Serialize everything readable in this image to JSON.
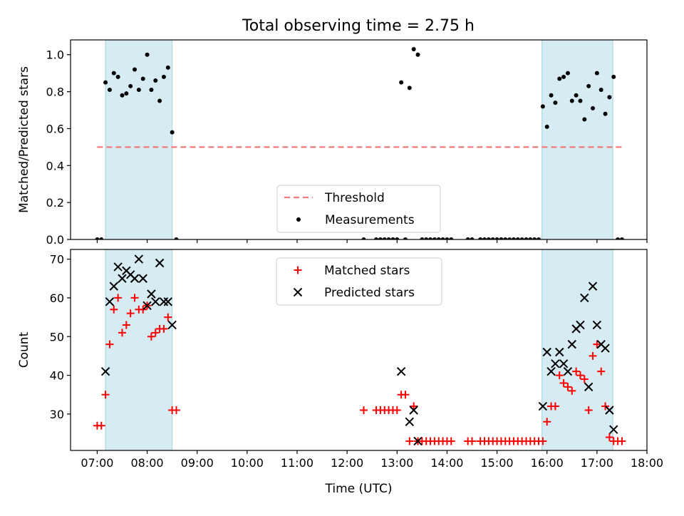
{
  "title": "Total observing time = 2.75 h",
  "chart_data": [
    {
      "type": "scatter",
      "ylabel": "Matched/Predicted stars",
      "xlim": [
        "06:28",
        "18:00"
      ],
      "ylim": [
        0,
        1.08
      ],
      "yticks": [
        "0.0",
        "0.2",
        "0.4",
        "0.6",
        "0.8",
        "1.0"
      ],
      "yticks_values": [
        0,
        0.2,
        0.4,
        0.6,
        0.8,
        1.0
      ],
      "shaded_intervals": [
        [
          "07:10",
          "08:30"
        ],
        [
          "15:54",
          "17:19"
        ]
      ],
      "threshold": {
        "name": "Threshold",
        "y": 0.5,
        "x_range": [
          "07:00",
          "17:30"
        ],
        "color": "#f47a7a"
      },
      "legend": {
        "position": "lower center",
        "entries": [
          "Threshold",
          "Measurements"
        ]
      },
      "series": [
        {
          "name": "Measurements",
          "marker": "dot",
          "color": "#000000",
          "points": [
            [
              "07:00",
              0
            ],
            [
              "07:05",
              0
            ],
            [
              "07:10",
              0.85
            ],
            [
              "07:15",
              0.81
            ],
            [
              "07:20",
              0.9
            ],
            [
              "07:25",
              0.88
            ],
            [
              "07:30",
              0.78
            ],
            [
              "07:35",
              0.79
            ],
            [
              "07:40",
              0.83
            ],
            [
              "07:45",
              0.92
            ],
            [
              "07:50",
              0.81
            ],
            [
              "07:55",
              0.87
            ],
            [
              "08:00",
              1.0
            ],
            [
              "08:05",
              0.81
            ],
            [
              "08:10",
              0.86
            ],
            [
              "08:15",
              0.75
            ],
            [
              "08:20",
              0.88
            ],
            [
              "08:25",
              0.93
            ],
            [
              "08:30",
              0.58
            ],
            [
              "08:35",
              0
            ],
            [
              "12:20",
              0
            ],
            [
              "12:35",
              0
            ],
            [
              "12:40",
              0
            ],
            [
              "12:45",
              0
            ],
            [
              "12:50",
              0
            ],
            [
              "12:55",
              0
            ],
            [
              "13:00",
              0
            ],
            [
              "13:05",
              0.85
            ],
            [
              "13:10",
              0
            ],
            [
              "13:15",
              0.82
            ],
            [
              "13:20",
              1.03
            ],
            [
              "13:25",
              1.0
            ],
            [
              "13:30",
              0
            ],
            [
              "13:35",
              0
            ],
            [
              "13:40",
              0
            ],
            [
              "13:45",
              0
            ],
            [
              "13:50",
              0
            ],
            [
              "13:55",
              0
            ],
            [
              "14:00",
              0
            ],
            [
              "14:05",
              0
            ],
            [
              "14:25",
              0
            ],
            [
              "14:30",
              0
            ],
            [
              "14:40",
              0
            ],
            [
              "14:45",
              0
            ],
            [
              "14:50",
              0
            ],
            [
              "14:55",
              0
            ],
            [
              "15:00",
              0
            ],
            [
              "15:05",
              0
            ],
            [
              "15:10",
              0
            ],
            [
              "15:15",
              0
            ],
            [
              "15:20",
              0
            ],
            [
              "15:25",
              0
            ],
            [
              "15:30",
              0
            ],
            [
              "15:35",
              0
            ],
            [
              "15:40",
              0
            ],
            [
              "15:45",
              0
            ],
            [
              "15:50",
              0
            ],
            [
              "15:55",
              0.72
            ],
            [
              "16:00",
              0.61
            ],
            [
              "16:05",
              0.78
            ],
            [
              "16:10",
              0.74
            ],
            [
              "16:15",
              0.87
            ],
            [
              "16:20",
              0.88
            ],
            [
              "16:25",
              0.9
            ],
            [
              "16:30",
              0.75
            ],
            [
              "16:35",
              0.78
            ],
            [
              "16:40",
              0.75
            ],
            [
              "16:45",
              0.65
            ],
            [
              "16:50",
              0.83
            ],
            [
              "16:55",
              0.71
            ],
            [
              "17:00",
              0.9
            ],
            [
              "17:05",
              0.81
            ],
            [
              "17:10",
              0.68
            ],
            [
              "17:15",
              0.77
            ],
            [
              "17:20",
              0.88
            ],
            [
              "17:25",
              0
            ],
            [
              "17:30",
              0
            ]
          ]
        }
      ]
    },
    {
      "type": "scatter",
      "xlabel": "Time (UTC)",
      "ylabel": "Count",
      "xlim": [
        "06:28",
        "18:00"
      ],
      "ylim": [
        20.6,
        72.5
      ],
      "xticks": [
        "07:00",
        "08:00",
        "09:00",
        "10:00",
        "11:00",
        "12:00",
        "13:00",
        "14:00",
        "15:00",
        "16:00",
        "17:00",
        "18:00"
      ],
      "yticks": [
        "30",
        "40",
        "50",
        "60",
        "70"
      ],
      "yticks_values": [
        30,
        40,
        50,
        60,
        70
      ],
      "shaded_intervals": [
        [
          "07:10",
          "08:30"
        ],
        [
          "15:54",
          "17:19"
        ]
      ],
      "legend": {
        "position": "upper center",
        "entries": [
          "Matched stars",
          "Predicted stars"
        ]
      },
      "series": [
        {
          "name": "Matched stars",
          "marker": "plus",
          "color": "#ff0000",
          "points": [
            [
              "07:00",
              27
            ],
            [
              "07:05",
              27
            ],
            [
              "07:10",
              35
            ],
            [
              "07:15",
              48
            ],
            [
              "07:20",
              57
            ],
            [
              "07:25",
              60
            ],
            [
              "07:30",
              51
            ],
            [
              "07:35",
              53
            ],
            [
              "07:40",
              56
            ],
            [
              "07:45",
              60
            ],
            [
              "07:50",
              57
            ],
            [
              "07:55",
              57
            ],
            [
              "08:00",
              58
            ],
            [
              "08:05",
              50
            ],
            [
              "08:10",
              51
            ],
            [
              "08:15",
              52
            ],
            [
              "08:20",
              52
            ],
            [
              "08:25",
              55
            ],
            [
              "08:30",
              31
            ],
            [
              "08:35",
              31
            ],
            [
              "12:20",
              31
            ],
            [
              "12:35",
              31
            ],
            [
              "12:40",
              31
            ],
            [
              "12:45",
              31
            ],
            [
              "12:50",
              31
            ],
            [
              "12:55",
              31
            ],
            [
              "13:00",
              31
            ],
            [
              "13:05",
              35
            ],
            [
              "13:10",
              35
            ],
            [
              "13:15",
              23
            ],
            [
              "13:20",
              32
            ],
            [
              "13:25",
              23
            ],
            [
              "13:30",
              23
            ],
            [
              "13:35",
              23
            ],
            [
              "13:40",
              23
            ],
            [
              "13:45",
              23
            ],
            [
              "13:50",
              23
            ],
            [
              "13:55",
              23
            ],
            [
              "14:00",
              23
            ],
            [
              "14:05",
              23
            ],
            [
              "14:25",
              23
            ],
            [
              "14:30",
              23
            ],
            [
              "14:40",
              23
            ],
            [
              "14:45",
              23
            ],
            [
              "14:50",
              23
            ],
            [
              "14:55",
              23
            ],
            [
              "15:00",
              23
            ],
            [
              "15:05",
              23
            ],
            [
              "15:10",
              23
            ],
            [
              "15:15",
              23
            ],
            [
              "15:20",
              23
            ],
            [
              "15:25",
              23
            ],
            [
              "15:30",
              23
            ],
            [
              "15:35",
              23
            ],
            [
              "15:40",
              23
            ],
            [
              "15:45",
              23
            ],
            [
              "15:50",
              23
            ],
            [
              "15:55",
              23
            ],
            [
              "16:00",
              28
            ],
            [
              "16:05",
              32
            ],
            [
              "16:10",
              32
            ],
            [
              "16:15",
              40
            ],
            [
              "16:20",
              38
            ],
            [
              "16:25",
              37
            ],
            [
              "16:30",
              36
            ],
            [
              "16:35",
              41
            ],
            [
              "16:40",
              40
            ],
            [
              "16:45",
              39
            ],
            [
              "16:50",
              31
            ],
            [
              "16:55",
              45
            ],
            [
              "17:00",
              48
            ],
            [
              "17:05",
              41
            ],
            [
              "17:10",
              32
            ],
            [
              "17:15",
              24
            ],
            [
              "17:20",
              23
            ],
            [
              "17:25",
              23
            ],
            [
              "17:30",
              23
            ]
          ]
        },
        {
          "name": "Predicted stars",
          "marker": "x",
          "color": "#000000",
          "points": [
            [
              "07:10",
              41
            ],
            [
              "07:15",
              59
            ],
            [
              "07:20",
              63
            ],
            [
              "07:25",
              68
            ],
            [
              "07:30",
              65
            ],
            [
              "07:35",
              67
            ],
            [
              "07:40",
              66
            ],
            [
              "07:45",
              65
            ],
            [
              "07:50",
              70
            ],
            [
              "07:55",
              65
            ],
            [
              "08:00",
              58
            ],
            [
              "08:05",
              61
            ],
            [
              "08:10",
              59
            ],
            [
              "08:15",
              69
            ],
            [
              "08:20",
              59
            ],
            [
              "08:25",
              59
            ],
            [
              "08:30",
              53
            ],
            [
              "13:05",
              41
            ],
            [
              "13:15",
              28
            ],
            [
              "13:20",
              31
            ],
            [
              "13:25",
              23
            ],
            [
              "15:55",
              32
            ],
            [
              "16:00",
              46
            ],
            [
              "16:05",
              41
            ],
            [
              "16:10",
              43
            ],
            [
              "16:15",
              46
            ],
            [
              "16:20",
              43
            ],
            [
              "16:25",
              41
            ],
            [
              "16:30",
              48
            ],
            [
              "16:35",
              52
            ],
            [
              "16:40",
              53
            ],
            [
              "16:45",
              60
            ],
            [
              "16:50",
              37
            ],
            [
              "16:55",
              63
            ],
            [
              "17:00",
              53
            ],
            [
              "17:05",
              48
            ],
            [
              "17:10",
              47
            ],
            [
              "17:15",
              31
            ],
            [
              "17:20",
              26
            ]
          ]
        }
      ]
    }
  ]
}
